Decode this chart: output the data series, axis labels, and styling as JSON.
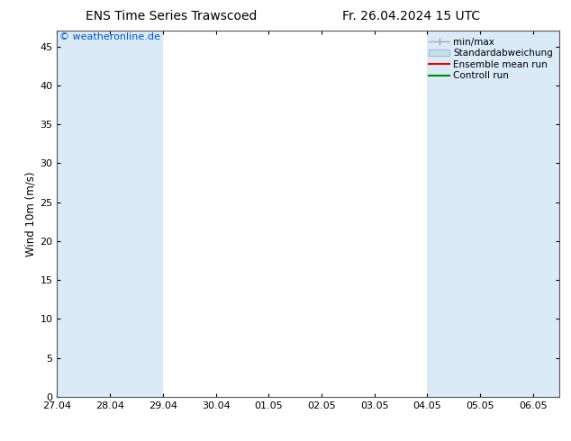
{
  "title_left": "ENS Time Series Trawscoed",
  "title_right": "Fr. 26.04.2024 15 UTC",
  "ylabel": "Wind 10m (m/s)",
  "watermark": "© weatheronline.de",
  "watermark_color": "#0055cc",
  "ylim": [
    0,
    47
  ],
  "yticks": [
    0,
    5,
    10,
    15,
    20,
    25,
    30,
    35,
    40,
    45
  ],
  "xtick_labels": [
    "27.04",
    "28.04",
    "29.04",
    "30.04",
    "01.05",
    "02.05",
    "03.05",
    "04.05",
    "05.05",
    "06.05"
  ],
  "background_color": "#ffffff",
  "plot_bg_color": "#ffffff",
  "shaded_band_color": "#daeaf7",
  "band_ranges": [
    [
      0.0,
      1.0
    ],
    [
      1.0,
      2.0
    ],
    [
      7.0,
      8.0
    ],
    [
      8.0,
      9.0
    ],
    [
      9.0,
      9.5
    ]
  ],
  "legend_minmax_color": "#aaaaaa",
  "legend_std_facecolor": "#c8dcea",
  "legend_std_edgecolor": "#99bbcc",
  "legend_ens_color": "#ee0000",
  "legend_ctrl_color": "#008800",
  "title_fontsize": 10,
  "tick_fontsize": 8,
  "ylabel_fontsize": 8.5,
  "watermark_fontsize": 8,
  "legend_fontsize": 7.5,
  "spine_color": "#555555",
  "grid_color": "#cccccc"
}
